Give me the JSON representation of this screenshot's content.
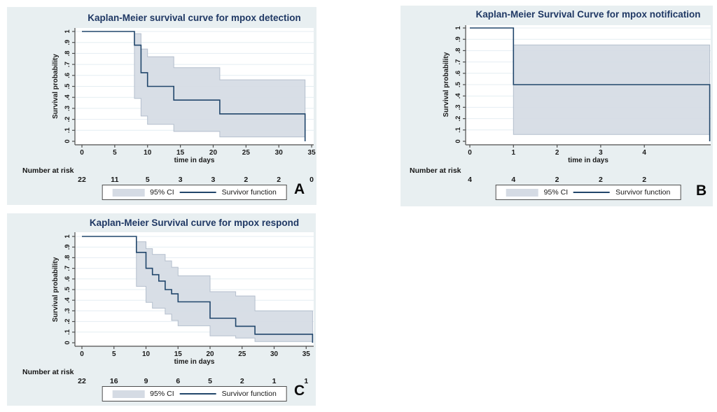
{
  "colors": {
    "page_bg": "#ffffff",
    "panel_bg": "#e8eff1",
    "plot_bg": "#ffffff",
    "grid": "#e4edf2",
    "axis": "#4d4d4d",
    "tick_text": "#1a1a1a",
    "title_text": "#1f3864",
    "survivor_line": "#21466b",
    "ci_fill": "#d5dbe4",
    "ci_edge": "#b4bfcd",
    "legend_border": "#4d4d4d",
    "letter_text": "#0a0a0a"
  },
  "chart_data": [
    {
      "type": "line",
      "subtype": "kaplan-meier-step",
      "panel_label": "A",
      "title": "Kaplan-Meier survival curve for mpox detection",
      "xlabel": "time in days",
      "ylabel": "Survival probability",
      "ylim": [
        0,
        1
      ],
      "yticks": [
        "0",
        ".1",
        ".2",
        ".3",
        ".4",
        ".5",
        ".6",
        ".7",
        ".8",
        ".9",
        "1"
      ],
      "xticks": [
        0,
        5,
        10,
        15,
        20,
        25,
        30,
        35
      ],
      "x_end": 34,
      "grid": "horizontal",
      "legend_position": "bottom-center",
      "series": [
        {
          "name": "Survivor function",
          "role": "survivor",
          "steps": [
            [
              0,
              1
            ],
            [
              8,
              0.875
            ],
            [
              9,
              0.625
            ],
            [
              10,
              0.5
            ],
            [
              14,
              0.375
            ],
            [
              21,
              0.25
            ]
          ],
          "final_drop_to": 0
        },
        {
          "name": "95% CI upper",
          "role": "ci_upper",
          "steps": [
            [
              8,
              0.98
            ],
            [
              9,
              0.84
            ],
            [
              10,
              0.77
            ],
            [
              14,
              0.67
            ],
            [
              21,
              0.56
            ]
          ]
        },
        {
          "name": "95% CI lower",
          "role": "ci_lower",
          "steps": [
            [
              8,
              0.39
            ],
            [
              9,
              0.23
            ],
            [
              10,
              0.155
            ],
            [
              14,
              0.09
            ],
            [
              21,
              0.04
            ]
          ]
        }
      ],
      "number_at_risk": {
        "label": "Number at risk",
        "times": [
          0,
          5,
          10,
          15,
          20,
          25,
          30,
          35
        ],
        "counts": [
          "22",
          "11",
          "5",
          "3",
          "3",
          "2",
          "2",
          "0"
        ]
      },
      "legend": {
        "ci_label": "95% CI",
        "survivor_label": "Survivor function"
      }
    },
    {
      "type": "line",
      "subtype": "kaplan-meier-step",
      "panel_label": "B",
      "title": "Kaplan-Meier Survival Curve for mpox notification",
      "xlabel": "time in days",
      "ylabel": "Survival probability",
      "ylim": [
        0,
        1
      ],
      "yticks": [
        "0",
        ".1",
        ".2",
        ".3",
        ".4",
        ".5",
        ".6",
        ".7",
        ".8",
        ".9",
        "1"
      ],
      "xticks": [
        0,
        1,
        2,
        3,
        4
      ],
      "x_end": 5.5,
      "grid": "horizontal",
      "legend_position": "bottom-center",
      "series": [
        {
          "name": "Survivor function",
          "role": "survivor",
          "steps": [
            [
              0,
              1
            ],
            [
              1,
              0.5
            ]
          ],
          "final_drop_to": 0
        },
        {
          "name": "95% CI upper",
          "role": "ci_upper",
          "steps": [
            [
              1,
              0.85
            ]
          ]
        },
        {
          "name": "95% CI lower",
          "role": "ci_lower",
          "steps": [
            [
              1,
              0.06
            ]
          ]
        }
      ],
      "number_at_risk": {
        "label": "Number at risk",
        "times": [
          0,
          1,
          2,
          3,
          4
        ],
        "counts": [
          "4",
          "4",
          "2",
          "2",
          "2"
        ]
      },
      "legend": {
        "ci_label": "95% CI",
        "survivor_label": "Survivor function"
      }
    },
    {
      "type": "line",
      "subtype": "kaplan-meier-step",
      "panel_label": "C",
      "title": "Kaplan-Meier Survival curve for mpox respond",
      "xlabel": "time in days",
      "ylabel": "Survival probability",
      "ylim": [
        0,
        1
      ],
      "yticks": [
        "0",
        ".1",
        ".2",
        ".3",
        ".4",
        ".5",
        ".6",
        ".7",
        ".8",
        ".9",
        "1"
      ],
      "xticks": [
        0,
        5,
        10,
        15,
        20,
        25,
        30,
        35
      ],
      "x_end": 36,
      "grid": "horizontal",
      "legend_position": "bottom-center",
      "series": [
        {
          "name": "Survivor function",
          "role": "survivor",
          "steps": [
            [
              0,
              1
            ],
            [
              8.5,
              0.85
            ],
            [
              10,
              0.7
            ],
            [
              11,
              0.64
            ],
            [
              12,
              0.58
            ],
            [
              13,
              0.5
            ],
            [
              14,
              0.46
            ],
            [
              15,
              0.385
            ],
            [
              20,
              0.23
            ],
            [
              24,
              0.155
            ],
            [
              27,
              0.08
            ]
          ],
          "final_drop_to": 0
        },
        {
          "name": "95% CI upper",
          "role": "ci_upper",
          "steps": [
            [
              8.5,
              0.95
            ],
            [
              10,
              0.885
            ],
            [
              11,
              0.83
            ],
            [
              13,
              0.77
            ],
            [
              14,
              0.71
            ],
            [
              15,
              0.63
            ],
            [
              20,
              0.48
            ],
            [
              24,
              0.44
            ],
            [
              27,
              0.3
            ]
          ]
        },
        {
          "name": "95% CI lower",
          "role": "ci_lower",
          "steps": [
            [
              8.5,
              0.53
            ],
            [
              10,
              0.38
            ],
            [
              11,
              0.325
            ],
            [
              13,
              0.27
            ],
            [
              14,
              0.21
            ],
            [
              15,
              0.16
            ],
            [
              20,
              0.065
            ],
            [
              24,
              0.045
            ],
            [
              27,
              0.012
            ]
          ]
        }
      ],
      "number_at_risk": {
        "label": "Number at risk",
        "times": [
          0,
          5,
          10,
          15,
          20,
          25,
          30,
          35
        ],
        "counts": [
          "22",
          "16",
          "9",
          "6",
          "5",
          "2",
          "1",
          "1"
        ]
      },
      "legend": {
        "ci_label": "95% CI",
        "survivor_label": "Survivor function"
      }
    }
  ]
}
